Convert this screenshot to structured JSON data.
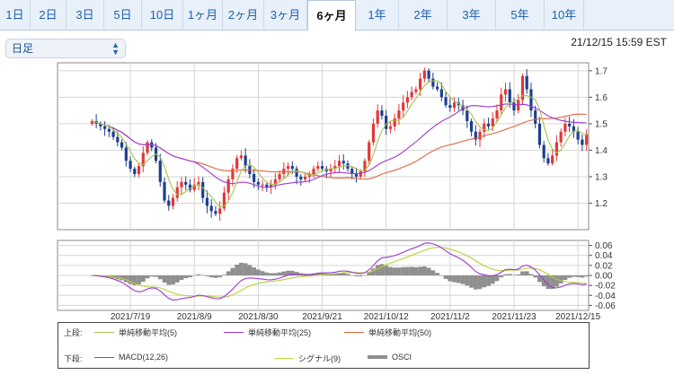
{
  "tabs": [
    {
      "label": "1日",
      "active": false
    },
    {
      "label": "2日",
      "active": false
    },
    {
      "label": "3日",
      "active": false
    },
    {
      "label": "5日",
      "active": false
    },
    {
      "label": "10日",
      "active": false
    },
    {
      "label": "1ヶ月",
      "active": false
    },
    {
      "label": "2ヶ月",
      "active": false
    },
    {
      "label": "3ヶ月",
      "active": false
    },
    {
      "label": "6ヶ月",
      "active": true
    },
    {
      "label": "1年",
      "active": false
    },
    {
      "label": "2年",
      "active": false
    },
    {
      "label": "3年",
      "active": false
    },
    {
      "label": "5年",
      "active": false
    },
    {
      "label": "10年",
      "active": false
    }
  ],
  "interval_select": {
    "value": "日足"
  },
  "timestamp": "21/12/15 15:59 EST",
  "legend": {
    "upper_prefix": "上段:",
    "lower_prefix": "下段:",
    "upper": [
      {
        "label": "単純移動平均(5)",
        "color": "#a7c24a"
      },
      {
        "label": "単純移動平均(25)",
        "color": "#9b38d6"
      },
      {
        "label": "単純移動平均(50)",
        "color": "#e0643c"
      }
    ],
    "lower": [
      {
        "label": "MACD(12,26)",
        "color": "#9b38d6"
      },
      {
        "label": "シグナル(9)",
        "color": "#b8d13a"
      },
      {
        "label": "OSCI",
        "color": "#8f8f8f"
      }
    ]
  },
  "colors": {
    "up": "#e23838",
    "down": "#1d3f8f",
    "grid": "#d5d5d5"
  },
  "chart_data": [
    {
      "type": "candlestick",
      "x_tick_labels": [
        "2021/7/19",
        "2021/8/9",
        "2021/8/30",
        "2021/9/21",
        "2021/10/12",
        "2021/11/2",
        "2021/11/23",
        "2021/12/15"
      ],
      "y_tick_labels": [
        "1.7",
        "1.6",
        "1.5",
        "1.4",
        "1.3",
        "1.2"
      ],
      "ylim": [
        1.1,
        1.73
      ],
      "close": [
        1.51,
        1.5,
        1.49,
        1.48,
        1.47,
        1.45,
        1.43,
        1.41,
        1.36,
        1.33,
        1.31,
        1.34,
        1.39,
        1.43,
        1.41,
        1.36,
        1.28,
        1.21,
        1.19,
        1.22,
        1.26,
        1.28,
        1.27,
        1.25,
        1.27,
        1.28,
        1.22,
        1.19,
        1.17,
        1.16,
        1.18,
        1.24,
        1.29,
        1.33,
        1.37,
        1.38,
        1.34,
        1.31,
        1.28,
        1.27,
        1.27,
        1.26,
        1.27,
        1.29,
        1.31,
        1.33,
        1.34,
        1.33,
        1.3,
        1.29,
        1.3,
        1.31,
        1.33,
        1.34,
        1.33,
        1.32,
        1.33,
        1.34,
        1.36,
        1.35,
        1.33,
        1.31,
        1.3,
        1.32,
        1.36,
        1.43,
        1.5,
        1.55,
        1.53,
        1.48,
        1.49,
        1.52,
        1.55,
        1.58,
        1.6,
        1.62,
        1.63,
        1.67,
        1.7,
        1.67,
        1.64,
        1.63,
        1.6,
        1.57,
        1.56,
        1.58,
        1.57,
        1.55,
        1.51,
        1.47,
        1.44,
        1.47,
        1.5,
        1.49,
        1.52,
        1.55,
        1.61,
        1.63,
        1.58,
        1.55,
        1.59,
        1.68,
        1.63,
        1.55,
        1.5,
        1.42,
        1.37,
        1.35,
        1.38,
        1.43,
        1.47,
        1.5,
        1.49,
        1.47,
        1.44,
        1.42,
        1.46
      ]
    },
    {
      "type": "line",
      "y_tick_labels": [
        "0.06",
        "0.04",
        "0.02",
        "0.00",
        "-0.02",
        "-0.04",
        "-0.06"
      ],
      "ylim": [
        -0.07,
        0.07
      ],
      "series": [
        {
          "name": "MACD(12,26)"
        },
        {
          "name": "シグナル(9)"
        },
        {
          "name": "OSCI"
        }
      ]
    }
  ]
}
